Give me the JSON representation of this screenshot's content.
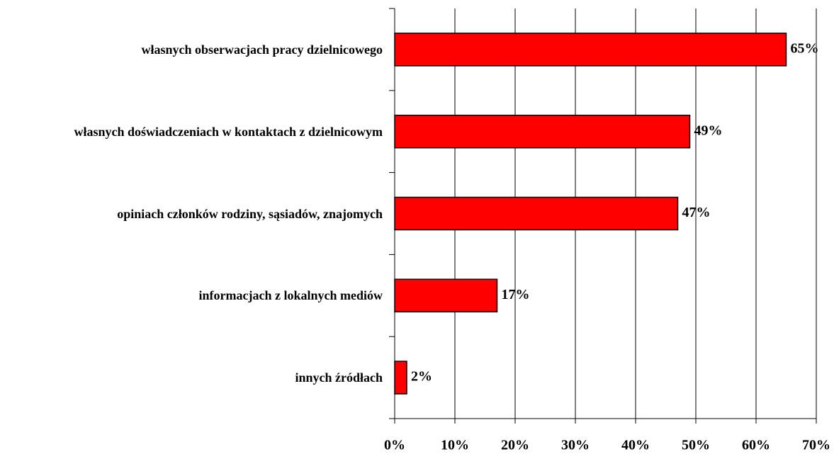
{
  "chart_data": {
    "type": "bar",
    "orientation": "horizontal",
    "categories": [
      "własnych obserwacjach pracy dzielnicowego",
      "własnych doświadczeniach w kontaktach z dzielnicowym",
      "opiniach członków rodziny, sąsiadów, znajomych",
      "informacjach z lokalnych mediów",
      "innych źródłach"
    ],
    "values": [
      65,
      49,
      47,
      17,
      2
    ],
    "value_labels": [
      "65%",
      "49%",
      "47%",
      "17%",
      "2%"
    ],
    "color": "#ff0000",
    "xlim": [
      0,
      70
    ],
    "xticks": [
      {
        "value": 0,
        "label": "0%"
      },
      {
        "value": 10,
        "label": "10%"
      },
      {
        "value": 20,
        "label": "20%"
      },
      {
        "value": 30,
        "label": "30%"
      },
      {
        "value": 40,
        "label": "40%"
      },
      {
        "value": 50,
        "label": "50%"
      },
      {
        "value": 60,
        "label": "60%"
      },
      {
        "value": 70,
        "label": "70%"
      }
    ],
    "grid": true
  }
}
